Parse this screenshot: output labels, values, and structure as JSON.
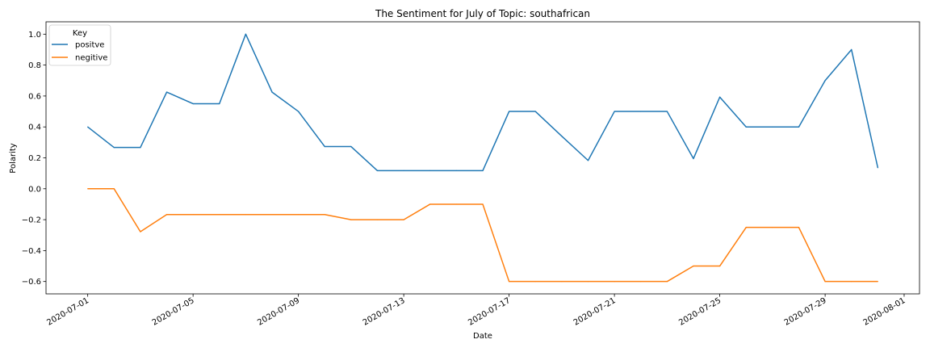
{
  "chart_data": {
    "type": "line",
    "title": "The Sentiment for July of Topic: southafrican",
    "xlabel": "Date",
    "ylabel": "Polarity",
    "x_type": "date",
    "xlim": [
      "2020-06-29T10:00",
      "2020-08-01T14:00"
    ],
    "ylim": [
      -0.68,
      1.08
    ],
    "x_ticks": [
      "2020-07-01",
      "2020-07-05",
      "2020-07-09",
      "2020-07-13",
      "2020-07-17",
      "2020-07-21",
      "2020-07-25",
      "2020-07-29",
      "2020-08-01"
    ],
    "y_ticks": [
      "1.0",
      "0.8",
      "0.6",
      "0.4",
      "0.2",
      "0.0",
      "−0.2",
      "−0.4",
      "−0.6"
    ],
    "grid": false,
    "legend": {
      "title": "Key",
      "position": "top-left"
    },
    "series": [
      {
        "name": "positve",
        "color": "#1f77b4",
        "x": [
          "2020-07-01",
          "2020-07-02",
          "2020-07-03",
          "2020-07-04",
          "2020-07-05",
          "2020-07-06",
          "2020-07-07",
          "2020-07-08",
          "2020-07-09",
          "2020-07-10",
          "2020-07-11",
          "2020-07-12",
          "2020-07-13",
          "2020-07-14",
          "2020-07-15",
          "2020-07-16",
          "2020-07-17",
          "2020-07-18",
          "2020-07-19",
          "2020-07-20",
          "2020-07-21",
          "2020-07-22",
          "2020-07-23",
          "2020-07-24",
          "2020-07-25",
          "2020-07-26",
          "2020-07-27",
          "2020-07-28",
          "2020-07-29",
          "2020-07-30",
          "2020-07-31"
        ],
        "y": [
          0.4,
          0.267,
          0.267,
          0.625,
          0.55,
          0.55,
          1.0,
          0.625,
          0.5,
          0.273,
          0.273,
          0.117,
          0.117,
          0.117,
          0.117,
          0.117,
          0.5,
          0.5,
          0.34,
          0.183,
          0.5,
          0.5,
          0.5,
          0.195,
          0.593,
          0.4,
          0.4,
          0.4,
          0.7,
          0.9,
          0.136
        ]
      },
      {
        "name": "negitive",
        "color": "#ff7f0e",
        "x": [
          "2020-07-01",
          "2020-07-02",
          "2020-07-03",
          "2020-07-04",
          "2020-07-05",
          "2020-07-06",
          "2020-07-07",
          "2020-07-08",
          "2020-07-09",
          "2020-07-10",
          "2020-07-11",
          "2020-07-12",
          "2020-07-13",
          "2020-07-14",
          "2020-07-15",
          "2020-07-16",
          "2020-07-17",
          "2020-07-18",
          "2020-07-19",
          "2020-07-20",
          "2020-07-21",
          "2020-07-22",
          "2020-07-23",
          "2020-07-24",
          "2020-07-25",
          "2020-07-26",
          "2020-07-27",
          "2020-07-28",
          "2020-07-29",
          "2020-07-30",
          "2020-07-31"
        ],
        "y": [
          0.0,
          0.0,
          -0.278,
          -0.167,
          -0.167,
          -0.167,
          -0.167,
          -0.167,
          -0.167,
          -0.167,
          -0.2,
          -0.2,
          -0.2,
          -0.1,
          -0.1,
          -0.1,
          -0.6,
          -0.6,
          -0.6,
          -0.6,
          -0.6,
          -0.6,
          -0.6,
          -0.5,
          -0.5,
          -0.25,
          -0.25,
          -0.25,
          -0.6,
          -0.6,
          -0.6
        ]
      }
    ]
  }
}
